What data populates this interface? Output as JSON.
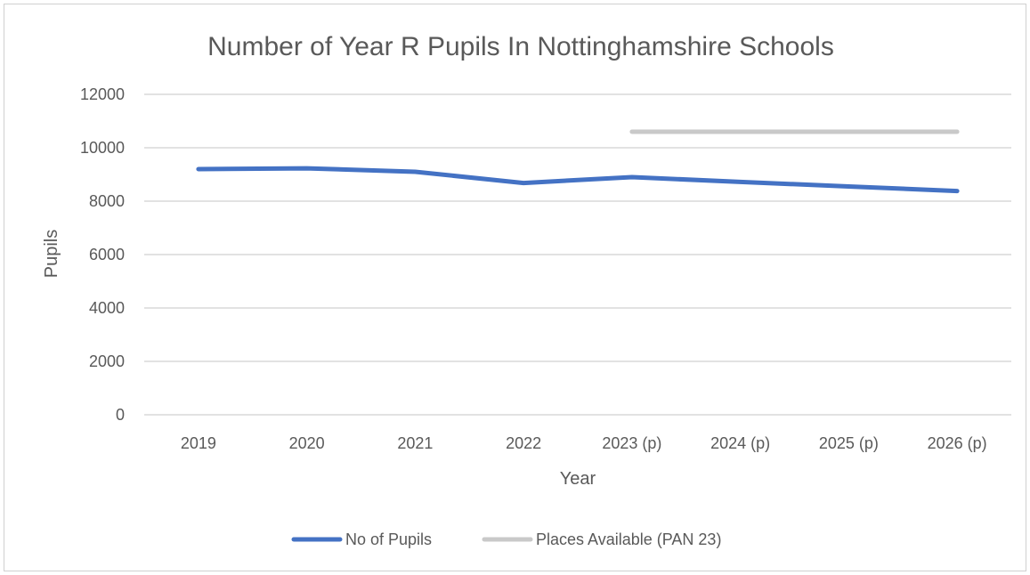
{
  "chart_data": {
    "type": "line",
    "title": "Number of Year R Pupils In Nottinghamshire Schools",
    "xlabel": "Year",
    "ylabel": "Pupils",
    "categories": [
      "2019",
      "2020",
      "2021",
      "2022",
      "2023 (p)",
      "2024 (p)",
      "2025 (p)",
      "2026 (p)"
    ],
    "ylim": [
      0,
      12000
    ],
    "yticks": [
      "0",
      "2000",
      "4000",
      "6000",
      "8000",
      "10000",
      "12000"
    ],
    "grid": true,
    "legend_position": "bottom",
    "series": [
      {
        "name": "No of Pupils",
        "color": "#4472c4",
        "values": [
          9200,
          9230,
          9100,
          8680,
          8900,
          8720,
          8550,
          8380
        ]
      },
      {
        "name": "Places Available (PAN 23)",
        "color": "#c9c9c9",
        "values": [
          null,
          null,
          null,
          null,
          10600,
          10600,
          10600,
          10600
        ]
      }
    ]
  }
}
